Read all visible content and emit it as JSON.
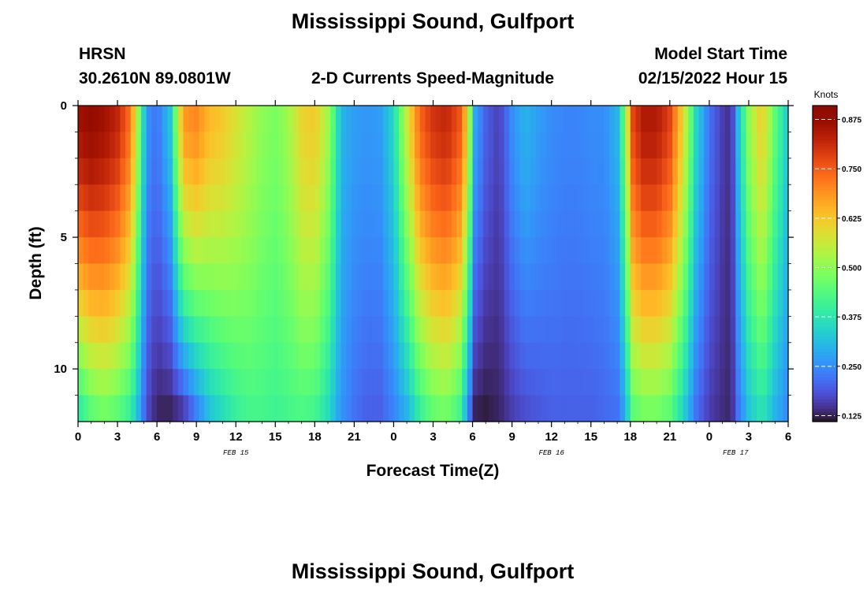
{
  "header": {
    "title": "Mississippi Sound, Gulfport",
    "station_code": "HRSN",
    "location": "30.2610N  89.0801W",
    "subtitle": "2-D Currents Speed-Magnitude",
    "model_start_label": "Model Start Time",
    "model_start_value": "02/15/2022 Hour 15"
  },
  "footer": {
    "repeated_title": "Mississippi Sound, Gulfport"
  },
  "chart_data": {
    "type": "heatmap",
    "xlabel": "Forecast Time(Z)",
    "ylabel": "Depth (ft)",
    "x_tick_labels": [
      "0",
      "3",
      "6",
      "9",
      "12",
      "15",
      "18",
      "21",
      "0",
      "3",
      "6",
      "9",
      "12",
      "15",
      "18",
      "21",
      "0",
      "3",
      "6"
    ],
    "x_range_hours": [
      0,
      54
    ],
    "date_labels": [
      {
        "text": "FEB 15",
        "hour": 12
      },
      {
        "text": "FEB 16",
        "hour": 36
      },
      {
        "text": "FEB 17",
        "hour": 50
      }
    ],
    "y_tick_labels": [
      "0",
      "5",
      "10"
    ],
    "ylim": [
      0,
      12
    ],
    "y_inverted": true,
    "rows": 12,
    "colorbar": {
      "unit": "Knots",
      "range": [
        0.11,
        0.91
      ],
      "tick_labels": [
        "0.875",
        "0.750",
        "0.625",
        "0.500",
        "0.375",
        "0.250",
        "0.125"
      ],
      "tick_values": [
        0.875,
        0.75,
        0.625,
        0.5,
        0.375,
        0.25,
        0.125
      ],
      "colormap": "turbo"
    },
    "profiles": {
      "time_hours": [
        0,
        1,
        2,
        3,
        4,
        4.6,
        5.2,
        6,
        7,
        8,
        9,
        10,
        11,
        12,
        13,
        14,
        15,
        16,
        17,
        18,
        19,
        19.6,
        20,
        21,
        22,
        23,
        24,
        25,
        26,
        27,
        28,
        29,
        29.7,
        30,
        31,
        32,
        33,
        34,
        35,
        36,
        37,
        38,
        39,
        40,
        41,
        41.7,
        42,
        43,
        44,
        45,
        46,
        47,
        48,
        49,
        49.7,
        50,
        51,
        52,
        53,
        54
      ],
      "surface": [
        0.86,
        0.88,
        0.86,
        0.82,
        0.72,
        0.5,
        0.26,
        0.22,
        0.32,
        0.68,
        0.7,
        0.64,
        0.62,
        0.58,
        0.54,
        0.5,
        0.48,
        0.52,
        0.6,
        0.62,
        0.52,
        0.4,
        0.3,
        0.27,
        0.26,
        0.27,
        0.35,
        0.56,
        0.74,
        0.8,
        0.82,
        0.76,
        0.6,
        0.3,
        0.2,
        0.16,
        0.25,
        0.3,
        0.27,
        0.25,
        0.24,
        0.24,
        0.25,
        0.25,
        0.3,
        0.5,
        0.76,
        0.84,
        0.84,
        0.78,
        0.6,
        0.35,
        0.22,
        0.16,
        0.14,
        0.26,
        0.5,
        0.62,
        0.45,
        0.32
      ],
      "bottom": [
        0.38,
        0.45,
        0.48,
        0.45,
        0.4,
        0.3,
        0.18,
        0.13,
        0.13,
        0.16,
        0.24,
        0.32,
        0.36,
        0.4,
        0.42,
        0.42,
        0.41,
        0.42,
        0.43,
        0.42,
        0.36,
        0.3,
        0.26,
        0.22,
        0.2,
        0.2,
        0.24,
        0.3,
        0.4,
        0.46,
        0.48,
        0.42,
        0.26,
        0.13,
        0.12,
        0.13,
        0.16,
        0.18,
        0.19,
        0.2,
        0.2,
        0.2,
        0.2,
        0.21,
        0.22,
        0.3,
        0.44,
        0.48,
        0.48,
        0.45,
        0.35,
        0.22,
        0.16,
        0.14,
        0.13,
        0.2,
        0.32,
        0.38,
        0.3,
        0.24
      ]
    }
  }
}
